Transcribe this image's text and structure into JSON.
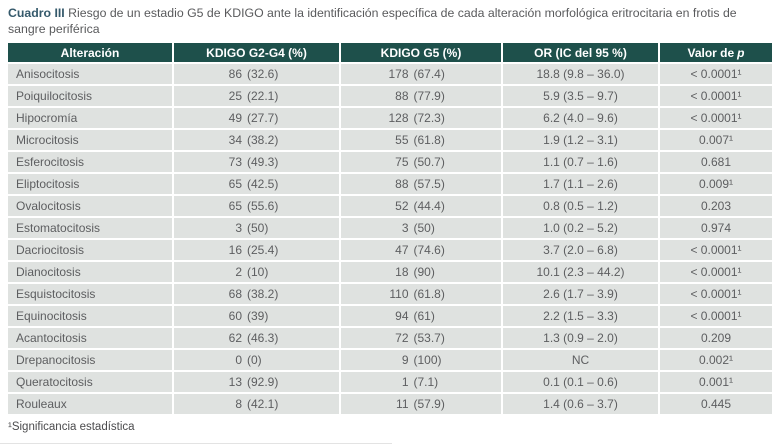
{
  "title": {
    "label": "Cuadro III",
    "text": "Riesgo de un estadio G5 de KDIGO ante la identificación específica de cada alteración morfológica eritrocitaria en frotis de sangre periférica"
  },
  "table": {
    "columns": [
      "Alteración",
      "KDIGO G2-G4 (%)",
      "KDIGO G5 (%)",
      "OR (IC del 95 %)"
    ],
    "header_p": {
      "prefix": "Valor de",
      "italic": "p"
    },
    "rows": [
      {
        "name": "Anisocitosis",
        "g24_n": "86",
        "g24_pct": "(32.6)",
        "g5_n": "178",
        "g5_pct": "(67.4)",
        "or": "18.8 (9.8 – 36.0)",
        "p": "< 0.0001¹"
      },
      {
        "name": "Poiquilocitosis",
        "g24_n": "25",
        "g24_pct": "(22.1)",
        "g5_n": "88",
        "g5_pct": "(77.9)",
        "or": "5.9 (3.5 – 9.7)",
        "p": "< 0.0001¹"
      },
      {
        "name": "Hipocromía",
        "g24_n": "49",
        "g24_pct": "(27.7)",
        "g5_n": "128",
        "g5_pct": "(72.3)",
        "or": "6.2 (4.0 – 9.6)",
        "p": "< 0.0001¹"
      },
      {
        "name": "Microcitosis",
        "g24_n": "34",
        "g24_pct": "(38.2)",
        "g5_n": "55",
        "g5_pct": "(61.8)",
        "or": "1.9 (1.2 – 3.1)",
        "p": "0.007¹"
      },
      {
        "name": "Esferocitosis",
        "g24_n": "73",
        "g24_pct": "(49.3)",
        "g5_n": "75",
        "g5_pct": "(50.7)",
        "or": "1.1 (0.7 – 1.6)",
        "p": "0.681"
      },
      {
        "name": "Eliptocitosis",
        "g24_n": "65",
        "g24_pct": "(42.5)",
        "g5_n": "88",
        "g5_pct": "(57.5)",
        "or": "1.7 (1.1 – 2.6)",
        "p": "0.009¹"
      },
      {
        "name": "Ovalocitosis",
        "g24_n": "65",
        "g24_pct": "(55.6)",
        "g5_n": "52",
        "g5_pct": "(44.4)",
        "or": "0.8 (0.5 – 1.2)",
        "p": "0.203"
      },
      {
        "name": "Estomatocitosis",
        "g24_n": "3",
        "g24_pct": "(50)",
        "g5_n": "3",
        "g5_pct": "(50)",
        "or": "1.0 (0.2 – 5.2)",
        "p": "0.974"
      },
      {
        "name": "Dacriocitosis",
        "g24_n": "16",
        "g24_pct": "(25.4)",
        "g5_n": "47",
        "g5_pct": "(74.6)",
        "or": "3.7 (2.0 – 6.8)",
        "p": "< 0.0001¹"
      },
      {
        "name": "Dianocitosis",
        "g24_n": "2",
        "g24_pct": "(10)",
        "g5_n": "18",
        "g5_pct": "(90)",
        "or": "10.1 (2.3 – 44.2)",
        "p": "< 0.0001¹"
      },
      {
        "name": "Esquistocitosis",
        "g24_n": "68",
        "g24_pct": "(38.2)",
        "g5_n": "110",
        "g5_pct": "(61.8)",
        "or": "2.6 (1.7 – 3.9)",
        "p": "< 0.0001¹"
      },
      {
        "name": "Equinocitosis",
        "g24_n": "60",
        "g24_pct": "(39)",
        "g5_n": "94",
        "g5_pct": "(61)",
        "or": "2.2 (1.5 – 3.3)",
        "p": "< 0.0001¹"
      },
      {
        "name": "Acantocitosis",
        "g24_n": "62",
        "g24_pct": "(46.3)",
        "g5_n": "72",
        "g5_pct": "(53.7)",
        "or": "1.3 (0.9 – 2.0)",
        "p": "0.209"
      },
      {
        "name": "Drepanocitosis",
        "g24_n": "0",
        "g24_pct": "(0)",
        "g5_n": "9",
        "g5_pct": "(100)",
        "or": "NC",
        "p": "0.002¹"
      },
      {
        "name": "Queratocitosis",
        "g24_n": "13",
        "g24_pct": "(92.9)",
        "g5_n": "1",
        "g5_pct": "(7.1)",
        "or": "0.1 (0.1 – 0.6)",
        "p": "0.001¹"
      },
      {
        "name": "Rouleaux",
        "g24_n": "8",
        "g24_pct": "(42.1)",
        "g5_n": "11",
        "g5_pct": "(57.9)",
        "or": "1.4 (0.6 – 3.7)",
        "p": "0.445"
      }
    ]
  },
  "footnote": "¹Significancia estadística",
  "colors": {
    "header_bg": "#1e504b",
    "row_bg": "#dfe2e0",
    "title_accent": "#35596b",
    "body_text": "#5d5e60"
  }
}
